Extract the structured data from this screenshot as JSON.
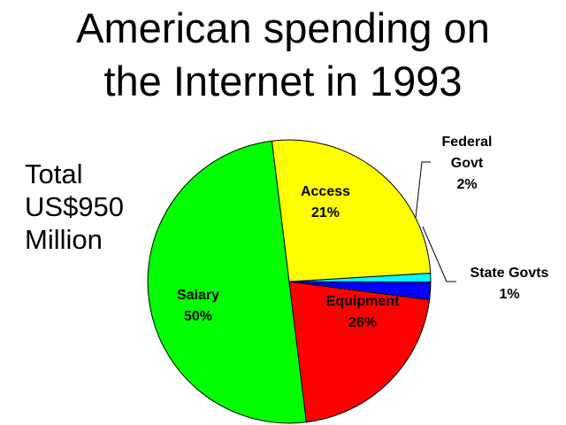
{
  "title": [
    "American spending on",
    "the Internet in 1993"
  ],
  "total_note": [
    "Total",
    "US$950",
    "Million"
  ],
  "colors": {
    "Salary": "#00ff00",
    "Access": "#ff0000",
    "Federal Govt": "#0000ff",
    "State Govts": "#00ffff",
    "Equipment": "#ffff00"
  },
  "chart_data": {
    "type": "pie",
    "title": "American spending on the Internet in 1993",
    "slices": [
      {
        "label": "Salary",
        "value": 50,
        "value_label": "50%"
      },
      {
        "label": "Access",
        "value": 21,
        "value_label": "21%"
      },
      {
        "label": "Federal Govt",
        "value": 2,
        "value_label": "2%"
      },
      {
        "label": "State Govts",
        "value": 1,
        "value_label": "1%"
      },
      {
        "label": "Equipment",
        "value": 26,
        "value_label": "26%"
      }
    ]
  }
}
